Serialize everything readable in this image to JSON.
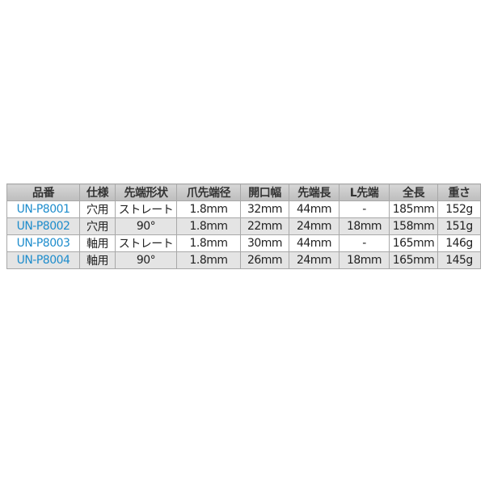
{
  "table": {
    "headers": [
      "品番",
      "仕様",
      "先端形状",
      "爪先端径",
      "開口幅",
      "先端長",
      "L先端",
      "全長",
      "重さ"
    ],
    "rows": [
      [
        "UN-P8001",
        "穴用",
        "ストレート",
        "1.8mm",
        "32mm",
        "44mm",
        "-",
        "185mm",
        "152g"
      ],
      [
        "UN-P8002",
        "穴用",
        "90°",
        "1.8mm",
        "22mm",
        "24mm",
        "18mm",
        "158mm",
        "151g"
      ],
      [
        "UN-P8003",
        "軸用",
        "ストレート",
        "1.8mm",
        "30mm",
        "44mm",
        "-",
        "165mm",
        "146g"
      ],
      [
        "UN-P8004",
        "軸用",
        "90°",
        "1.8mm",
        "26mm",
        "24mm",
        "18mm",
        "165mm",
        "145g"
      ]
    ],
    "part_number_color": "#1d8ccc"
  }
}
